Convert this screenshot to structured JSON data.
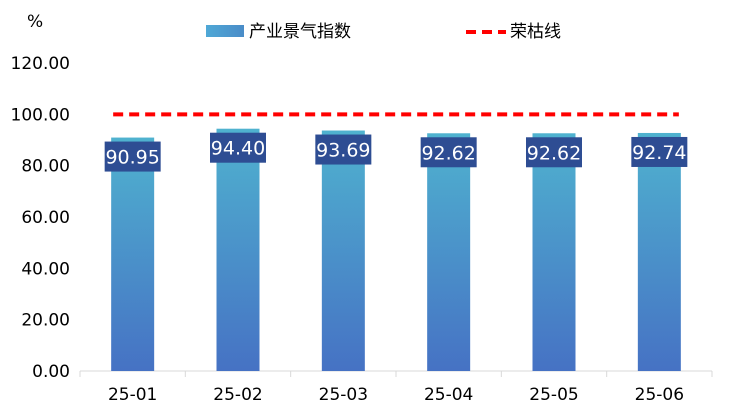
{
  "chart_data": {
    "type": "bar",
    "unit": "%",
    "categories": [
      "25-01",
      "25-02",
      "25-03",
      "25-04",
      "25-05",
      "25-06"
    ],
    "series": [
      {
        "name": "产业景气指数",
        "type": "bar",
        "values": [
          90.95,
          94.4,
          93.69,
          92.62,
          92.62,
          92.74
        ]
      },
      {
        "name": "荣枯线",
        "type": "line",
        "style": "dashed",
        "values": [
          100,
          100,
          100,
          100,
          100,
          100
        ]
      }
    ],
    "data_labels": [
      "90.95",
      "94.40",
      "93.69",
      "92.62",
      "92.62",
      "92.74"
    ],
    "y_ticks": [
      "0.00",
      "20.00",
      "40.00",
      "60.00",
      "80.00",
      "100.00",
      "120.00"
    ],
    "ylim": [
      0,
      120
    ],
    "grid": false,
    "legend_position": "top",
    "colors": {
      "bar_top": "#4fb2cf",
      "bar_bottom": "#4672c4",
      "label_box": "#2e4d93",
      "threshold_line": "#ff0000",
      "axis": "#d9d9d9"
    }
  }
}
